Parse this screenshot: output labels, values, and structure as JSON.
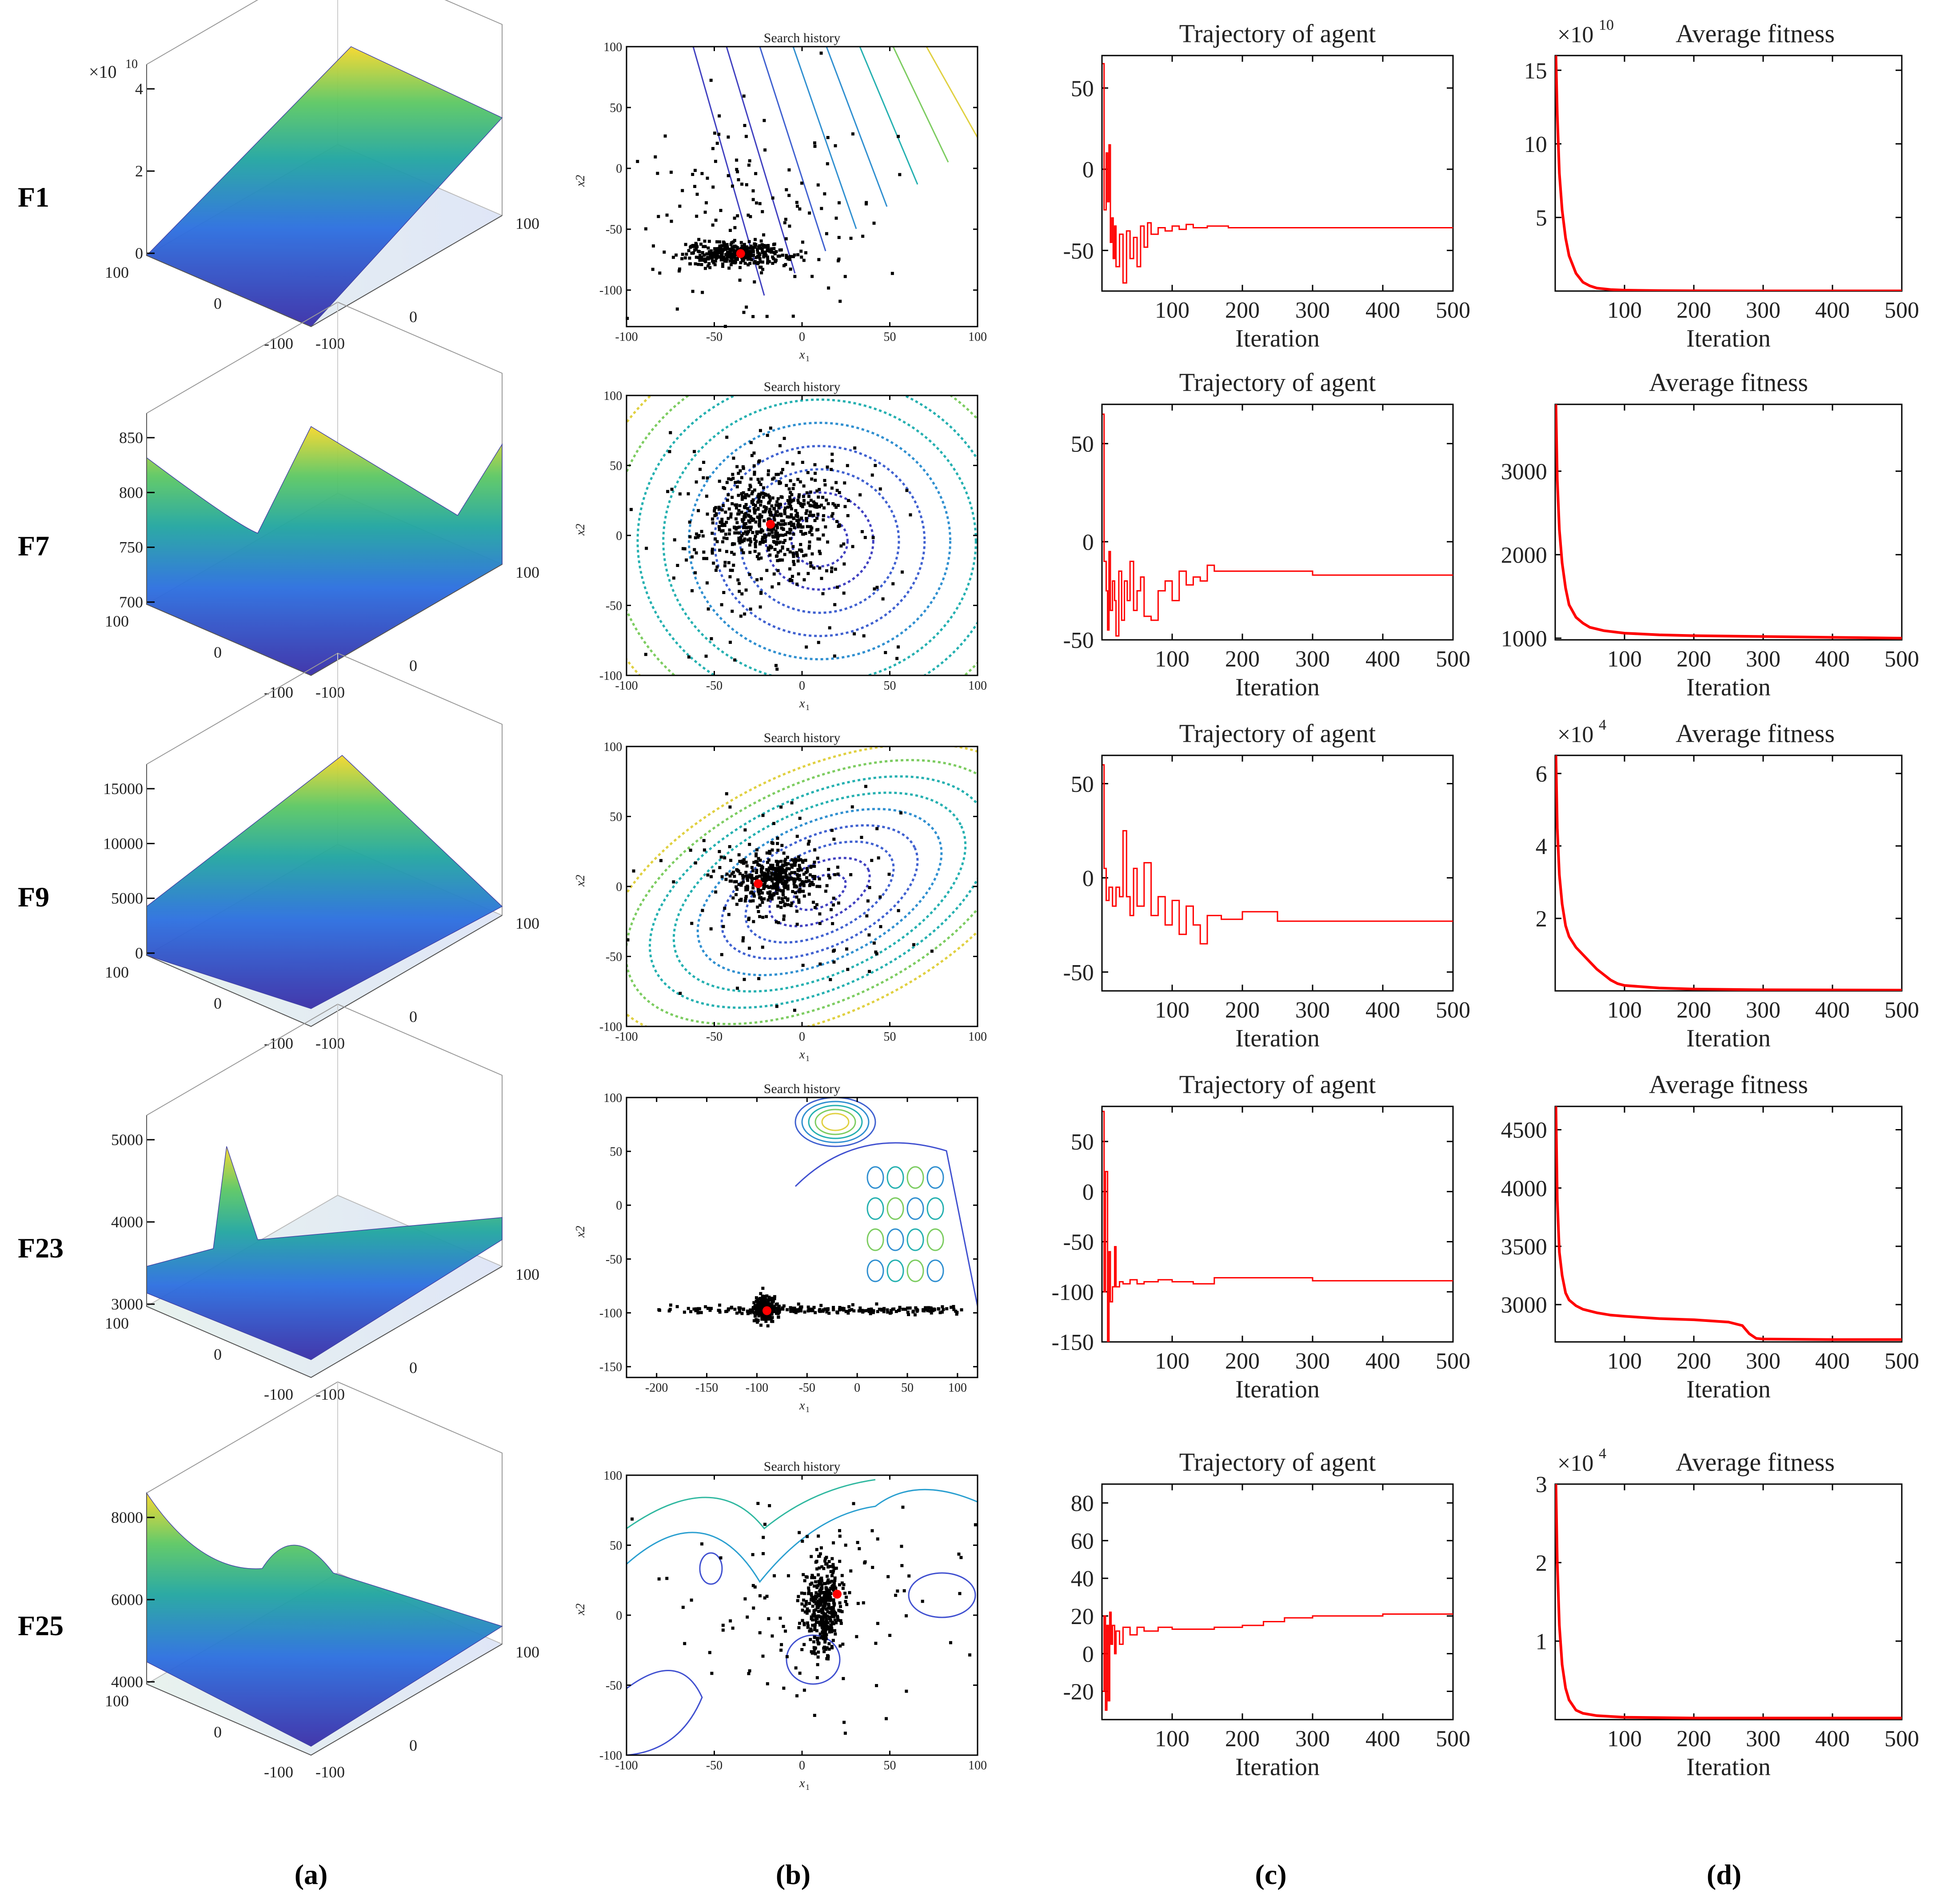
{
  "colors": {
    "curve": "#ff0000",
    "point": "#000000",
    "best": "#ff0000",
    "surface_low": "#3b2fa8",
    "surface_mid": "#21a6a0",
    "surface_high": "#f6d72a"
  },
  "row_labels": [
    "F1",
    "F7",
    "F9",
    "F23",
    "F25"
  ],
  "column_labels": [
    "(a)",
    "(b)",
    "(c)",
    "(d)"
  ],
  "chart_data": [
    {
      "id": "F1-a",
      "type": "surface",
      "zmul": "×10",
      "zexp": "10",
      "zticks": [
        "0",
        "2",
        "4"
      ],
      "xticks": [
        "100",
        "0",
        "-100"
      ],
      "yticks": [
        "-100",
        "0",
        "100"
      ]
    },
    {
      "id": "F7-a",
      "type": "surface",
      "zticks": [
        "700",
        "750",
        "800",
        "850"
      ],
      "xticks": [
        "100",
        "0",
        "-100"
      ],
      "yticks": [
        "-100",
        "0",
        "100"
      ]
    },
    {
      "id": "F9-a",
      "type": "surface",
      "zticks": [
        "0",
        "5000",
        "10000",
        "15000"
      ],
      "xticks": [
        "100",
        "0",
        "-100"
      ],
      "yticks": [
        "-100",
        "0",
        "100"
      ]
    },
    {
      "id": "F23-a",
      "type": "surface",
      "zticks": [
        "3000",
        "4000",
        "5000"
      ],
      "xticks": [
        "100",
        "0",
        "-100"
      ],
      "yticks": [
        "-100",
        "0",
        "100"
      ]
    },
    {
      "id": "F25-a",
      "type": "surface",
      "zticks": [
        "4000",
        "6000",
        "8000"
      ],
      "xticks": [
        "100",
        "0",
        "-100"
      ],
      "yticks": [
        "-100",
        "0",
        "100"
      ]
    },
    {
      "id": "F1-b",
      "type": "scatter",
      "title": "Search history",
      "xlabel": "x1",
      "ylabel": "x2",
      "xlim": [
        -100,
        100
      ],
      "ylim": [
        -130,
        100
      ],
      "xticks": [
        -100,
        -50,
        0,
        50,
        100
      ],
      "yticks": [
        -100,
        -50,
        0,
        50,
        100
      ],
      "cluster": [
        -38,
        -70
      ],
      "spread": [
        14,
        5
      ],
      "extra": [
        -30,
        -40,
        35,
        45
      ],
      "best": [
        -35,
        -70
      ]
    },
    {
      "id": "F7-b",
      "type": "scatter",
      "title": "Search history",
      "xlabel": "x1",
      "ylabel": "x2",
      "xlim": [
        -100,
        100
      ],
      "ylim": [
        -100,
        100
      ],
      "xticks": [
        -100,
        -50,
        0,
        50,
        100
      ],
      "yticks": [
        -100,
        -50,
        0,
        50,
        100
      ],
      "cluster": [
        -20,
        10
      ],
      "spread": [
        18,
        18
      ],
      "extra": [
        -20,
        0,
        40,
        40
      ],
      "best": [
        -18,
        8
      ]
    },
    {
      "id": "F9-b",
      "type": "scatter",
      "title": "Search history",
      "xlabel": "x1",
      "ylabel": "x2",
      "xlim": [
        -100,
        100
      ],
      "ylim": [
        -100,
        100
      ],
      "xticks": [
        -100,
        -50,
        0,
        50,
        100
      ],
      "yticks": [
        -100,
        -50,
        0,
        50,
        100
      ],
      "cluster": [
        -15,
        5
      ],
      "spread": [
        12,
        10
      ],
      "extra": [
        -10,
        0,
        35,
        35
      ],
      "best": [
        -25,
        2
      ]
    },
    {
      "id": "F23-b",
      "type": "scatter",
      "title": "Search history",
      "xlabel": "x1",
      "ylabel": "x2",
      "xlim": [
        -230,
        120
      ],
      "ylim": [
        -160,
        100
      ],
      "xticks": [
        -200,
        -150,
        -100,
        -50,
        0,
        50,
        100
      ],
      "yticks": [
        -150,
        -100,
        -50,
        0,
        50,
        100
      ],
      "cluster": [
        -92,
        -97
      ],
      "spread": [
        5,
        6
      ],
      "extra": [
        -20,
        -97,
        80,
        2
      ],
      "best": [
        -90,
        -98
      ]
    },
    {
      "id": "F25-b",
      "type": "scatter",
      "title": "Search history",
      "xlabel": "x1",
      "ylabel": "x2",
      "xlim": [
        -100,
        100
      ],
      "ylim": [
        -100,
        100
      ],
      "xticks": [
        -100,
        -50,
        0,
        50,
        100
      ],
      "yticks": [
        -100,
        -50,
        0,
        50,
        100
      ],
      "cluster": [
        12,
        5
      ],
      "spread": [
        5,
        15
      ],
      "extra": [
        5,
        10,
        40,
        40
      ],
      "best": [
        20,
        15
      ]
    },
    {
      "id": "F1-c",
      "type": "line",
      "title": "Trajectory of agent",
      "xlabel": "Iteration",
      "xlim": [
        0,
        500
      ],
      "ylim": [
        -75,
        70
      ],
      "xticks": [
        100,
        200,
        300,
        400,
        500
      ],
      "yticks": [
        -50,
        0,
        50
      ],
      "x": [
        1,
        3,
        6,
        8,
        10,
        12,
        14,
        16,
        18,
        20,
        25,
        30,
        35,
        40,
        45,
        50,
        55,
        60,
        65,
        70,
        80,
        90,
        100,
        110,
        120,
        130,
        150,
        180,
        250,
        500
      ],
      "y": [
        65,
        -25,
        10,
        -20,
        15,
        -45,
        -30,
        -55,
        -35,
        -60,
        -40,
        -70,
        -38,
        -55,
        -42,
        -60,
        -35,
        -48,
        -33,
        -40,
        -36,
        -38,
        -35,
        -37,
        -34,
        -36,
        -35,
        -36,
        -36,
        -36
      ]
    },
    {
      "id": "F7-c",
      "type": "line",
      "title": "Trajectory of agent",
      "xlabel": "Iteration",
      "xlim": [
        0,
        500
      ],
      "ylim": [
        -50,
        70
      ],
      "xticks": [
        100,
        200,
        300,
        400,
        500
      ],
      "yticks": [
        -50,
        0,
        50
      ],
      "x": [
        1,
        3,
        6,
        8,
        10,
        12,
        15,
        18,
        20,
        24,
        28,
        32,
        36,
        40,
        45,
        50,
        55,
        60,
        70,
        80,
        90,
        100,
        110,
        120,
        130,
        140,
        150,
        160,
        280,
        300,
        500
      ],
      "y": [
        65,
        -10,
        -25,
        -45,
        -5,
        -35,
        -20,
        -30,
        -48,
        -15,
        -40,
        -20,
        -30,
        -10,
        -35,
        -25,
        -18,
        -38,
        -40,
        -25,
        -20,
        -30,
        -15,
        -22,
        -18,
        -20,
        -12,
        -15,
        -15,
        -17,
        -17
      ]
    },
    {
      "id": "F9-c",
      "type": "line",
      "title": "Trajectory of agent",
      "xlabel": "Iteration",
      "xlim": [
        0,
        500
      ],
      "ylim": [
        -60,
        65
      ],
      "xticks": [
        100,
        200,
        300,
        400,
        500
      ],
      "yticks": [
        -50,
        0,
        50
      ],
      "x": [
        1,
        3,
        6,
        10,
        15,
        20,
        25,
        30,
        35,
        40,
        45,
        50,
        60,
        70,
        80,
        90,
        100,
        110,
        120,
        130,
        140,
        150,
        170,
        200,
        250,
        300,
        500
      ],
      "y": [
        60,
        5,
        -12,
        -5,
        -15,
        -5,
        -10,
        25,
        -10,
        -20,
        5,
        -15,
        8,
        -20,
        -10,
        -25,
        -12,
        -30,
        -15,
        -25,
        -35,
        -20,
        -22,
        -18,
        -23,
        -23,
        -23
      ]
    },
    {
      "id": "F23-c",
      "type": "line",
      "title": "Trajectory of agent",
      "xlabel": "Iteration",
      "xlim": [
        0,
        500
      ],
      "ylim": [
        -150,
        85
      ],
      "xticks": [
        100,
        200,
        300,
        400,
        500
      ],
      "yticks": [
        -150,
        -100,
        -50,
        0,
        50
      ],
      "x": [
        1,
        3,
        5,
        8,
        10,
        12,
        15,
        18,
        20,
        25,
        30,
        40,
        50,
        60,
        80,
        100,
        130,
        160,
        180,
        250,
        300,
        500
      ],
      "y": [
        80,
        -100,
        20,
        -150,
        -60,
        -110,
        -95,
        -55,
        -95,
        -90,
        -92,
        -88,
        -92,
        -90,
        -88,
        -90,
        -92,
        -86,
        -86,
        -86,
        -89,
        -89
      ]
    },
    {
      "id": "F25-c",
      "type": "line",
      "title": "Trajectory of agent",
      "xlabel": "Iteration",
      "xlim": [
        0,
        500
      ],
      "ylim": [
        -35,
        90
      ],
      "xticks": [
        100,
        200,
        300,
        400,
        500
      ],
      "yticks": [
        -20,
        0,
        20,
        40,
        60,
        80
      ],
      "x": [
        1,
        3,
        5,
        7,
        9,
        11,
        13,
        15,
        18,
        20,
        25,
        30,
        40,
        50,
        60,
        80,
        100,
        130,
        160,
        200,
        230,
        260,
        300,
        400,
        500
      ],
      "y": [
        -20,
        20,
        -30,
        15,
        -25,
        22,
        5,
        15,
        0,
        12,
        5,
        14,
        10,
        14,
        12,
        14,
        13,
        13,
        14,
        15,
        17,
        19,
        20,
        21,
        21
      ]
    },
    {
      "id": "F1-d",
      "type": "line",
      "title": "Average fitness",
      "xmul": "×10",
      "xexp": "10",
      "xlabel": "Iteration",
      "xlim": [
        0,
        500
      ],
      "ylim": [
        0,
        16
      ],
      "xticks": [
        100,
        200,
        300,
        400,
        500
      ],
      "yticks": [
        5,
        10,
        15
      ],
      "x": [
        1,
        3,
        6,
        10,
        15,
        20,
        30,
        40,
        50,
        60,
        80,
        100,
        150,
        200,
        300,
        500
      ],
      "y": [
        16,
        12,
        8,
        5.5,
        3.6,
        2.4,
        1.2,
        0.6,
        0.35,
        0.2,
        0.1,
        0.06,
        0.03,
        0.02,
        0.01,
        0.01
      ]
    },
    {
      "id": "F7-d",
      "type": "line",
      "title": "Average fitness",
      "xlabel": "Iteration",
      "xlim": [
        0,
        500
      ],
      "ylim": [
        980,
        3800
      ],
      "xticks": [
        100,
        200,
        300,
        400,
        500
      ],
      "yticks": [
        1000,
        2000,
        3000
      ],
      "x": [
        1,
        3,
        6,
        10,
        15,
        20,
        30,
        40,
        50,
        70,
        100,
        150,
        200,
        300,
        400,
        500
      ],
      "y": [
        3800,
        2900,
        2300,
        1900,
        1600,
        1400,
        1250,
        1180,
        1130,
        1090,
        1060,
        1040,
        1030,
        1020,
        1010,
        1000
      ]
    },
    {
      "id": "F9-d",
      "type": "line",
      "title": "Average fitness",
      "xmul": "×10",
      "xexp": "4",
      "xlabel": "Iteration",
      "xlim": [
        0,
        500
      ],
      "ylim": [
        0,
        6.5
      ],
      "xticks": [
        100,
        200,
        300,
        400,
        500
      ],
      "yticks": [
        2,
        4,
        6
      ],
      "x": [
        1,
        3,
        6,
        10,
        15,
        20,
        30,
        40,
        50,
        60,
        70,
        80,
        90,
        100,
        150,
        200,
        300,
        500
      ],
      "y": [
        6.5,
        4.5,
        3.2,
        2.4,
        1.8,
        1.5,
        1.2,
        1.0,
        0.8,
        0.6,
        0.45,
        0.3,
        0.2,
        0.15,
        0.08,
        0.05,
        0.03,
        0.02
      ]
    },
    {
      "id": "F23-d",
      "type": "line",
      "title": "Average fitness",
      "xlabel": "Iteration",
      "xlim": [
        0,
        500
      ],
      "ylim": [
        2680,
        4700
      ],
      "xticks": [
        100,
        200,
        300,
        400,
        500
      ],
      "yticks": [
        3000,
        3500,
        4000,
        4500
      ],
      "x": [
        1,
        3,
        6,
        10,
        15,
        20,
        30,
        40,
        60,
        80,
        100,
        150,
        200,
        250,
        270,
        280,
        290,
        300,
        400,
        500
      ],
      "y": [
        4700,
        3900,
        3450,
        3250,
        3100,
        3040,
        2990,
        2960,
        2930,
        2910,
        2900,
        2880,
        2870,
        2850,
        2820,
        2750,
        2710,
        2705,
        2700,
        2700
      ]
    },
    {
      "id": "F25-d",
      "type": "line",
      "title": "Average fitness",
      "xmul": "×10",
      "xexp": "4",
      "xlabel": "Iteration",
      "xlim": [
        0,
        500
      ],
      "ylim": [
        0,
        3
      ],
      "xticks": [
        100,
        200,
        300,
        400,
        500
      ],
      "yticks": [
        1,
        2,
        3
      ],
      "x": [
        1,
        3,
        6,
        10,
        15,
        20,
        30,
        40,
        60,
        100,
        200,
        300,
        500
      ],
      "y": [
        3,
        2,
        1.2,
        0.7,
        0.4,
        0.25,
        0.12,
        0.08,
        0.05,
        0.03,
        0.02,
        0.02,
        0.02
      ]
    }
  ]
}
